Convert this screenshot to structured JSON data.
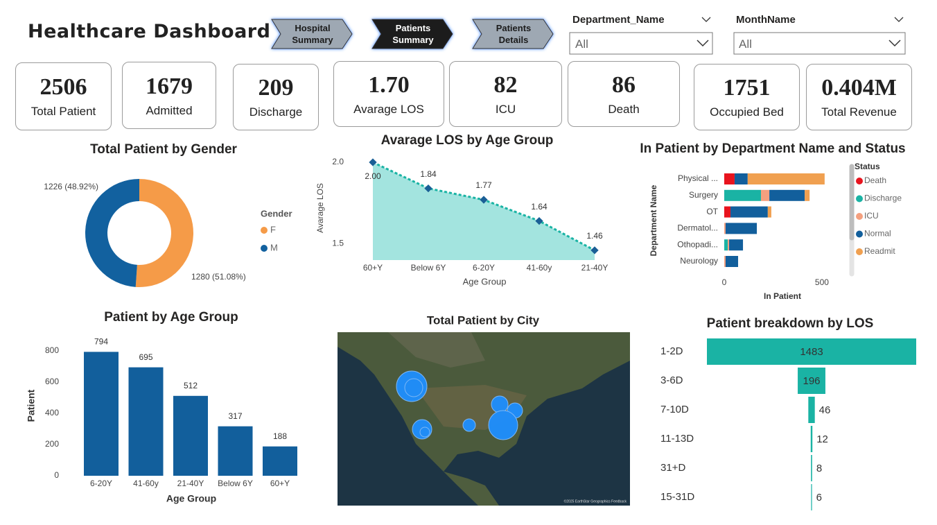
{
  "title": "Healthcare Dashboard",
  "nav": [
    "Hospital Summary",
    "Patients Summary",
    "Patients Details"
  ],
  "filters": [
    {
      "label": "Department_Name",
      "value": "All"
    },
    {
      "label": "MonthName",
      "value": "All"
    }
  ],
  "kpis": [
    {
      "value": "2506",
      "label": "Total Patient"
    },
    {
      "value": "1679",
      "label": "Admitted"
    },
    {
      "value": "209",
      "label": "Discharge"
    },
    {
      "value": "1.70",
      "label": "Avarage LOS"
    },
    {
      "value": "82",
      "label": "ICU"
    },
    {
      "value": "86",
      "label": "Death"
    },
    {
      "value": "1751",
      "label": "Occupied Bed"
    },
    {
      "value": "0.404M",
      "label": "Total Revenue"
    }
  ],
  "chart_data": [
    {
      "type": "donut",
      "title": "Total Patient by Gender",
      "legend_title": "Gender",
      "categories": [
        "F",
        "M"
      ],
      "values": [
        1280,
        1226
      ],
      "value_labels": [
        "1280 (51.08%)",
        "1226 (48.92%)"
      ],
      "colors": [
        "#f59b48",
        "#12619f"
      ]
    },
    {
      "type": "area",
      "title": "Avarage LOS by Age Group",
      "xlabel": "Age Group",
      "ylabel": "Avarage LOS",
      "categories": [
        "60+Y",
        "Below 6Y",
        "6-20Y",
        "41-60y",
        "21-40Y"
      ],
      "values": [
        2.0,
        1.84,
        1.77,
        1.64,
        1.46
      ],
      "value_labels": [
        "2.00",
        "1.84",
        "1.77",
        "1.64",
        "1.46"
      ],
      "ylim": [
        1.4,
        2.0
      ],
      "yticks": [
        {
          "value": 2,
          "label": "2.0"
        },
        1.5
      ],
      "color": "#a3e4df",
      "line_color": "#1ab3a4",
      "marker_color": "#1a5f96"
    },
    {
      "type": "stacked_hbar",
      "title": "In Patient by Department Name and Status",
      "xlabel": "In Patient",
      "ylabel": "Department Name",
      "legend_title": "Status",
      "categories": [
        "Physical ...",
        "Surgery",
        "OT",
        "Dermatol...",
        "Othopadi...",
        "Neurology"
      ],
      "series": [
        {
          "name": "Death",
          "color": "#e8141e",
          "values": [
            53,
            0,
            32,
            0,
            0,
            0
          ]
        },
        {
          "name": "Discharge",
          "color": "#1ab3a4",
          "values": [
            0,
            188,
            0,
            0,
            18,
            0
          ]
        },
        {
          "name": "ICU",
          "color": "#f4a07f",
          "values": [
            0,
            43,
            0,
            7,
            7,
            7
          ]
        },
        {
          "name": "Normal",
          "color": "#125f9c",
          "values": [
            67,
            181,
            191,
            160,
            71,
            64
          ]
        },
        {
          "name": "Readmit",
          "color": "#f0a050",
          "values": [
            394,
            25,
            18,
            0,
            0,
            0
          ]
        }
      ],
      "xlim": [
        0,
        550
      ],
      "xticks": [
        0,
        500
      ]
    },
    {
      "type": "bar",
      "title": "Patient by Age Group",
      "xlabel": "Age Group",
      "ylabel": "Patient",
      "categories": [
        "6-20Y",
        "41-60y",
        "21-40Y",
        "Below 6Y",
        "60+Y"
      ],
      "values": [
        794,
        695,
        512,
        317,
        188
      ],
      "ylim": [
        0,
        800
      ],
      "yticks": [
        0,
        200,
        400,
        600,
        800
      ],
      "color": "#125f9c"
    },
    {
      "type": "map",
      "title": "Total Patient by City",
      "attribution": "©2025 EarthStar Geographics  Feedback"
    },
    {
      "type": "funnel",
      "title": "Patient breakdown by LOS",
      "categories": [
        "1-2D",
        "3-6D",
        "7-10D",
        "11-13D",
        "31+D",
        "15-31D"
      ],
      "values": [
        1483,
        196,
        46,
        12,
        8,
        6
      ],
      "color": "#1ab3a4"
    }
  ]
}
